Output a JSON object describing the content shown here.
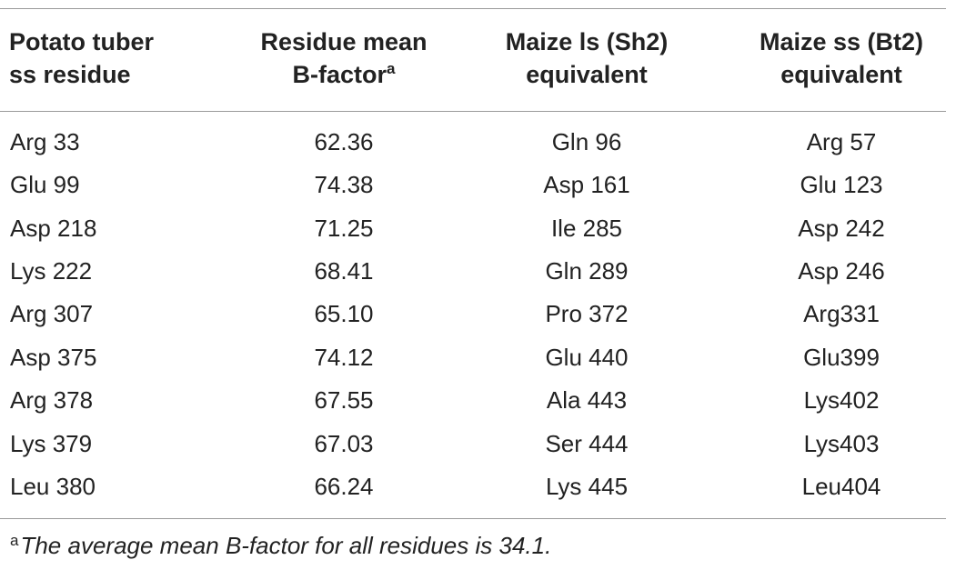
{
  "table": {
    "headers": {
      "col1_line1": "Potato tuber",
      "col1_line2": "ss residue",
      "col2_line1": "Residue mean",
      "col2_line2": "B-factor",
      "col2_sup": "a",
      "col3_line1": "Maize ls (Sh2)",
      "col3_line2": "equivalent",
      "col4_line1": "Maize ss (Bt2)",
      "col4_line2": "equivalent"
    },
    "rows": [
      {
        "residue": "Arg 33",
        "bfactor": "62.36",
        "maize_ls": "Gln 96",
        "maize_ss": "Arg 57"
      },
      {
        "residue": "Glu 99",
        "bfactor": "74.38",
        "maize_ls": "Asp 161",
        "maize_ss": "Glu 123"
      },
      {
        "residue": "Asp 218",
        "bfactor": "71.25",
        "maize_ls": "Ile 285",
        "maize_ss": "Asp 242"
      },
      {
        "residue": "Lys 222",
        "bfactor": "68.41",
        "maize_ls": "Gln 289",
        "maize_ss": "Asp 246"
      },
      {
        "residue": "Arg 307",
        "bfactor": "65.10",
        "maize_ls": "Pro 372",
        "maize_ss": "Arg331"
      },
      {
        "residue": "Asp 375",
        "bfactor": "74.12",
        "maize_ls": "Glu 440",
        "maize_ss": "Glu399"
      },
      {
        "residue": "Arg 378",
        "bfactor": "67.55",
        "maize_ls": "Ala 443",
        "maize_ss": "Lys402"
      },
      {
        "residue": "Lys 379",
        "bfactor": "67.03",
        "maize_ls": "Ser 444",
        "maize_ss": "Lys403"
      },
      {
        "residue": "Leu 380",
        "bfactor": "66.24",
        "maize_ls": "Lys 445",
        "maize_ss": "Leu404"
      }
    ]
  },
  "footnote": {
    "marker": "a",
    "text": "The average mean B-factor for all residues is 34.1."
  }
}
